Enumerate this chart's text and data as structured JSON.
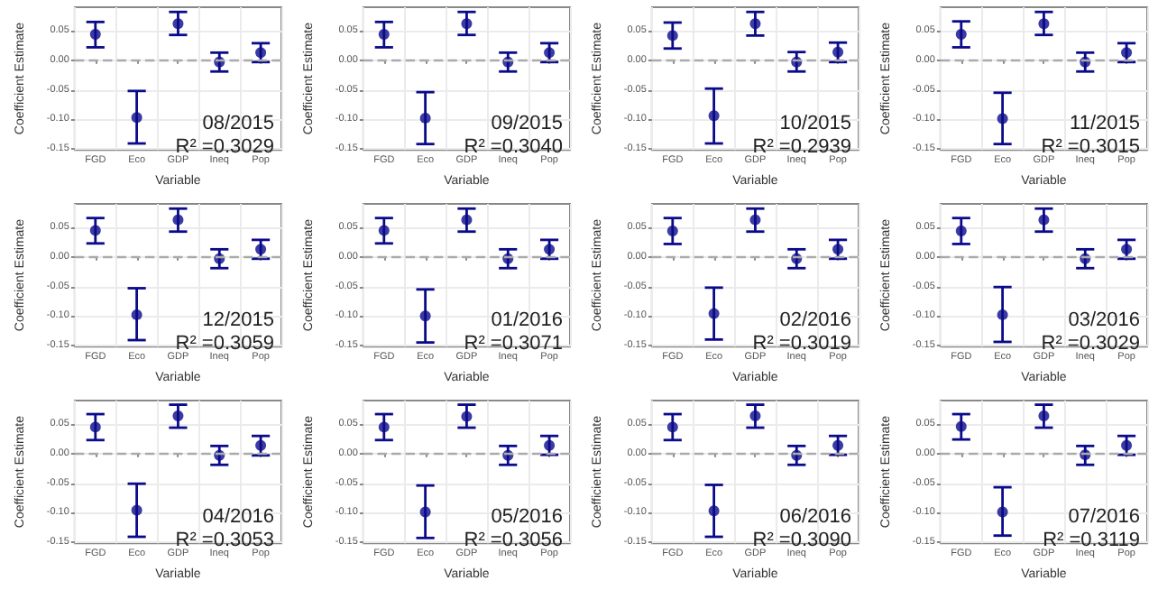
{
  "chart_data": [
    {
      "type": "scatter",
      "categories": [
        "FGD",
        "Eco",
        "GDP",
        "Ineq",
        "Pop"
      ],
      "values": [
        0.044,
        -0.097,
        0.062,
        -0.003,
        0.013
      ],
      "errors": [
        [
          0.022,
          0.065
        ],
        [
          -0.141,
          -0.052
        ],
        [
          0.043,
          0.082
        ],
        [
          -0.019,
          0.013
        ],
        [
          -0.003,
          0.029
        ]
      ],
      "color": "#0a0a8a",
      "xlabel": "Variable",
      "ylabel": "Coefficient Estimate",
      "ylim": [
        -0.152,
        0.09
      ],
      "yticks": [
        {
          "value": -0.15,
          "label": "-0.15"
        },
        {
          "value": -0.1,
          "label": "-0.10"
        },
        {
          "value": -0.05,
          "label": "-0.05"
        },
        {
          "value": 0,
          "label": "0.00"
        },
        {
          "value": 0.05,
          "label": "0.05"
        }
      ],
      "grid": true,
      "marker": "circle",
      "ref_lines": [
        {
          "axis": "y",
          "value": 0,
          "color": "#aaaaaa",
          "line_style": "dashed"
        }
      ],
      "annotations": [
        "08/2015",
        "R² =0.3029"
      ]
    },
    {
      "type": "scatter",
      "categories": [
        "FGD",
        "Eco",
        "GDP",
        "Ineq",
        "Pop"
      ],
      "values": [
        0.044,
        -0.098,
        0.062,
        -0.003,
        0.013
      ],
      "errors": [
        [
          0.022,
          0.065
        ],
        [
          -0.142,
          -0.054
        ],
        [
          0.043,
          0.082
        ],
        [
          -0.019,
          0.013
        ],
        [
          -0.003,
          0.029
        ]
      ],
      "color": "#0a0a8a",
      "xlabel": "Variable",
      "ylabel": "Coefficient Estimate",
      "ylim": [
        -0.152,
        0.09
      ],
      "yticks": [
        {
          "value": -0.15,
          "label": "-0.15"
        },
        {
          "value": -0.1,
          "label": "-0.10"
        },
        {
          "value": -0.05,
          "label": "-0.05"
        },
        {
          "value": 0,
          "label": "0.00"
        },
        {
          "value": 0.05,
          "label": "0.05"
        }
      ],
      "grid": true,
      "marker": "circle",
      "ref_lines": [
        {
          "axis": "y",
          "value": 0,
          "color": "#aaaaaa",
          "line_style": "dashed"
        }
      ],
      "annotations": [
        "09/2015",
        "R² =0.3040"
      ]
    },
    {
      "type": "scatter",
      "categories": [
        "FGD",
        "Eco",
        "GDP",
        "Ineq",
        "Pop"
      ],
      "values": [
        0.042,
        -0.094,
        0.062,
        -0.003,
        0.014
      ],
      "errors": [
        [
          0.02,
          0.064
        ],
        [
          -0.141,
          -0.048
        ],
        [
          0.042,
          0.082
        ],
        [
          -0.019,
          0.014
        ],
        [
          -0.003,
          0.03
        ]
      ],
      "color": "#0a0a8a",
      "xlabel": "Variable",
      "ylabel": "Coefficient Estimate",
      "ylim": [
        -0.152,
        0.09
      ],
      "yticks": [
        {
          "value": -0.15,
          "label": "-0.15"
        },
        {
          "value": -0.1,
          "label": "-0.10"
        },
        {
          "value": -0.05,
          "label": "-0.05"
        },
        {
          "value": 0,
          "label": "0.00"
        },
        {
          "value": 0.05,
          "label": "0.05"
        }
      ],
      "grid": true,
      "marker": "circle",
      "ref_lines": [
        {
          "axis": "y",
          "value": 0,
          "color": "#aaaaaa",
          "line_style": "dashed"
        }
      ],
      "annotations": [
        "10/2015",
        "R² =0.2939"
      ]
    },
    {
      "type": "scatter",
      "categories": [
        "FGD",
        "Eco",
        "GDP",
        "Ineq",
        "Pop"
      ],
      "values": [
        0.044,
        -0.099,
        0.062,
        -0.003,
        0.013
      ],
      "errors": [
        [
          0.022,
          0.066
        ],
        [
          -0.142,
          -0.055
        ],
        [
          0.043,
          0.082
        ],
        [
          -0.019,
          0.013
        ],
        [
          -0.003,
          0.029
        ]
      ],
      "color": "#0a0a8a",
      "xlabel": "Variable",
      "ylabel": "Coefficient Estimate",
      "ylim": [
        -0.152,
        0.09
      ],
      "yticks": [
        {
          "value": -0.15,
          "label": "-0.15"
        },
        {
          "value": -0.1,
          "label": "-0.10"
        },
        {
          "value": -0.05,
          "label": "-0.05"
        },
        {
          "value": 0,
          "label": "0.00"
        },
        {
          "value": 0.05,
          "label": "0.05"
        }
      ],
      "grid": true,
      "marker": "circle",
      "ref_lines": [
        {
          "axis": "y",
          "value": 0,
          "color": "#aaaaaa",
          "line_style": "dashed"
        }
      ],
      "annotations": [
        "11/2015",
        "R² =0.3015"
      ]
    },
    {
      "type": "scatter",
      "categories": [
        "FGD",
        "Eco",
        "GDP",
        "Ineq",
        "Pop"
      ],
      "values": [
        0.045,
        -0.098,
        0.063,
        -0.003,
        0.013
      ],
      "errors": [
        [
          0.023,
          0.066
        ],
        [
          -0.141,
          -0.053
        ],
        [
          0.043,
          0.082
        ],
        [
          -0.019,
          0.013
        ],
        [
          -0.003,
          0.029
        ]
      ],
      "color": "#0a0a8a",
      "xlabel": "Variable",
      "ylabel": "Coefficient Estimate",
      "ylim": [
        -0.152,
        0.09
      ],
      "yticks": [
        {
          "value": -0.15,
          "label": "-0.15"
        },
        {
          "value": -0.1,
          "label": "-0.10"
        },
        {
          "value": -0.05,
          "label": "-0.05"
        },
        {
          "value": 0,
          "label": "0.00"
        },
        {
          "value": 0.05,
          "label": "0.05"
        }
      ],
      "grid": true,
      "marker": "circle",
      "ref_lines": [
        {
          "axis": "y",
          "value": 0,
          "color": "#aaaaaa",
          "line_style": "dashed"
        }
      ],
      "annotations": [
        "12/2015",
        "R² =0.3059"
      ]
    },
    {
      "type": "scatter",
      "categories": [
        "FGD",
        "Eco",
        "GDP",
        "Ineq",
        "Pop"
      ],
      "values": [
        0.045,
        -0.1,
        0.063,
        -0.003,
        0.013
      ],
      "errors": [
        [
          0.023,
          0.066
        ],
        [
          -0.145,
          -0.055
        ],
        [
          0.043,
          0.082
        ],
        [
          -0.019,
          0.013
        ],
        [
          -0.003,
          0.029
        ]
      ],
      "color": "#0a0a8a",
      "xlabel": "Variable",
      "ylabel": "Coefficient Estimate",
      "ylim": [
        -0.152,
        0.09
      ],
      "yticks": [
        {
          "value": -0.15,
          "label": "-0.15"
        },
        {
          "value": -0.1,
          "label": "-0.10"
        },
        {
          "value": -0.05,
          "label": "-0.05"
        },
        {
          "value": 0,
          "label": "0.00"
        },
        {
          "value": 0.05,
          "label": "0.05"
        }
      ],
      "grid": true,
      "marker": "circle",
      "ref_lines": [
        {
          "axis": "y",
          "value": 0,
          "color": "#aaaaaa",
          "line_style": "dashed"
        }
      ],
      "annotations": [
        "01/2016",
        "R² =0.3071"
      ]
    },
    {
      "type": "scatter",
      "categories": [
        "FGD",
        "Eco",
        "GDP",
        "Ineq",
        "Pop"
      ],
      "values": [
        0.044,
        -0.096,
        0.063,
        -0.003,
        0.013
      ],
      "errors": [
        [
          0.022,
          0.066
        ],
        [
          -0.14,
          -0.052
        ],
        [
          0.043,
          0.082
        ],
        [
          -0.019,
          0.013
        ],
        [
          -0.003,
          0.029
        ]
      ],
      "color": "#0a0a8a",
      "xlabel": "Variable",
      "ylabel": "Coefficient Estimate",
      "ylim": [
        -0.152,
        0.09
      ],
      "yticks": [
        {
          "value": -0.15,
          "label": "-0.15"
        },
        {
          "value": -0.1,
          "label": "-0.10"
        },
        {
          "value": -0.05,
          "label": "-0.05"
        },
        {
          "value": 0,
          "label": "0.00"
        },
        {
          "value": 0.05,
          "label": "0.05"
        }
      ],
      "grid": true,
      "marker": "circle",
      "ref_lines": [
        {
          "axis": "y",
          "value": 0,
          "color": "#aaaaaa",
          "line_style": "dashed"
        }
      ],
      "annotations": [
        "02/2016",
        "R² =0.3019"
      ]
    },
    {
      "type": "scatter",
      "categories": [
        "FGD",
        "Eco",
        "GDP",
        "Ineq",
        "Pop"
      ],
      "values": [
        0.044,
        -0.098,
        0.063,
        -0.003,
        0.013
      ],
      "errors": [
        [
          0.022,
          0.066
        ],
        [
          -0.144,
          -0.051
        ],
        [
          0.043,
          0.082
        ],
        [
          -0.019,
          0.013
        ],
        [
          -0.003,
          0.029
        ]
      ],
      "color": "#0a0a8a",
      "xlabel": "Variable",
      "ylabel": "Coefficient Estimate",
      "ylim": [
        -0.152,
        0.09
      ],
      "yticks": [
        {
          "value": -0.15,
          "label": "-0.15"
        },
        {
          "value": -0.1,
          "label": "-0.10"
        },
        {
          "value": -0.05,
          "label": "-0.05"
        },
        {
          "value": 0,
          "label": "0.00"
        },
        {
          "value": 0.05,
          "label": "0.05"
        }
      ],
      "grid": true,
      "marker": "circle",
      "ref_lines": [
        {
          "axis": "y",
          "value": 0,
          "color": "#aaaaaa",
          "line_style": "dashed"
        }
      ],
      "annotations": [
        "03/2016",
        "R² =0.3029"
      ]
    },
    {
      "type": "scatter",
      "categories": [
        "FGD",
        "Eco",
        "GDP",
        "Ineq",
        "Pop"
      ],
      "values": [
        0.045,
        -0.096,
        0.064,
        -0.003,
        0.014
      ],
      "errors": [
        [
          0.023,
          0.067
        ],
        [
          -0.141,
          -0.051
        ],
        [
          0.044,
          0.083
        ],
        [
          -0.019,
          0.013
        ],
        [
          -0.003,
          0.03
        ]
      ],
      "color": "#0a0a8a",
      "xlabel": "Variable",
      "ylabel": "Coefficient Estimate",
      "ylim": [
        -0.152,
        0.09
      ],
      "yticks": [
        {
          "value": -0.15,
          "label": "-0.15"
        },
        {
          "value": -0.1,
          "label": "-0.10"
        },
        {
          "value": -0.05,
          "label": "-0.05"
        },
        {
          "value": 0,
          "label": "0.00"
        },
        {
          "value": 0.05,
          "label": "0.05"
        }
      ],
      "grid": true,
      "marker": "circle",
      "ref_lines": [
        {
          "axis": "y",
          "value": 0,
          "color": "#aaaaaa",
          "line_style": "dashed"
        }
      ],
      "annotations": [
        "04/2016",
        "R² =0.3053"
      ]
    },
    {
      "type": "scatter",
      "categories": [
        "FGD",
        "Eco",
        "GDP",
        "Ineq",
        "Pop"
      ],
      "values": [
        0.045,
        -0.099,
        0.063,
        -0.003,
        0.014
      ],
      "errors": [
        [
          0.023,
          0.067
        ],
        [
          -0.143,
          -0.054
        ],
        [
          0.044,
          0.083
        ],
        [
          -0.019,
          0.013
        ],
        [
          -0.002,
          0.03
        ]
      ],
      "color": "#0a0a8a",
      "xlabel": "Variable",
      "ylabel": "Coefficient Estimate",
      "ylim": [
        -0.152,
        0.09
      ],
      "yticks": [
        {
          "value": -0.15,
          "label": "-0.15"
        },
        {
          "value": -0.1,
          "label": "-0.10"
        },
        {
          "value": -0.05,
          "label": "-0.05"
        },
        {
          "value": 0,
          "label": "0.00"
        },
        {
          "value": 0.05,
          "label": "0.05"
        }
      ],
      "grid": true,
      "marker": "circle",
      "ref_lines": [
        {
          "axis": "y",
          "value": 0,
          "color": "#aaaaaa",
          "line_style": "dashed"
        }
      ],
      "annotations": [
        "05/2016",
        "R² =0.3056"
      ]
    },
    {
      "type": "scatter",
      "categories": [
        "FGD",
        "Eco",
        "GDP",
        "Ineq",
        "Pop"
      ],
      "values": [
        0.045,
        -0.097,
        0.064,
        -0.003,
        0.014
      ],
      "errors": [
        [
          0.023,
          0.067
        ],
        [
          -0.141,
          -0.053
        ],
        [
          0.044,
          0.083
        ],
        [
          -0.019,
          0.013
        ],
        [
          -0.002,
          0.03
        ]
      ],
      "color": "#0a0a8a",
      "xlabel": "Variable",
      "ylabel": "Coefficient Estimate",
      "ylim": [
        -0.152,
        0.09
      ],
      "yticks": [
        {
          "value": -0.15,
          "label": "-0.15"
        },
        {
          "value": -0.1,
          "label": "-0.10"
        },
        {
          "value": -0.05,
          "label": "-0.05"
        },
        {
          "value": 0,
          "label": "0.00"
        },
        {
          "value": 0.05,
          "label": "0.05"
        }
      ],
      "grid": true,
      "marker": "circle",
      "ref_lines": [
        {
          "axis": "y",
          "value": 0,
          "color": "#aaaaaa",
          "line_style": "dashed"
        }
      ],
      "annotations": [
        "06/2016",
        "R² =0.3090"
      ]
    },
    {
      "type": "scatter",
      "categories": [
        "FGD",
        "Eco",
        "GDP",
        "Ineq",
        "Pop"
      ],
      "values": [
        0.046,
        -0.099,
        0.064,
        -0.002,
        0.014
      ],
      "errors": [
        [
          0.024,
          0.067
        ],
        [
          -0.139,
          -0.057
        ],
        [
          0.044,
          0.083
        ],
        [
          -0.019,
          0.013
        ],
        [
          -0.002,
          0.03
        ]
      ],
      "color": "#0a0a8a",
      "xlabel": "Variable",
      "ylabel": "Coefficient Estimate",
      "ylim": [
        -0.152,
        0.09
      ],
      "yticks": [
        {
          "value": -0.15,
          "label": "-0.15"
        },
        {
          "value": -0.1,
          "label": "-0.10"
        },
        {
          "value": -0.05,
          "label": "-0.05"
        },
        {
          "value": 0,
          "label": "0.00"
        },
        {
          "value": 0.05,
          "label": "0.05"
        }
      ],
      "grid": true,
      "marker": "circle",
      "ref_lines": [
        {
          "axis": "y",
          "value": 0,
          "color": "#aaaaaa",
          "line_style": "dashed"
        }
      ],
      "annotations": [
        "07/2016",
        "R² =0.3119"
      ]
    }
  ]
}
